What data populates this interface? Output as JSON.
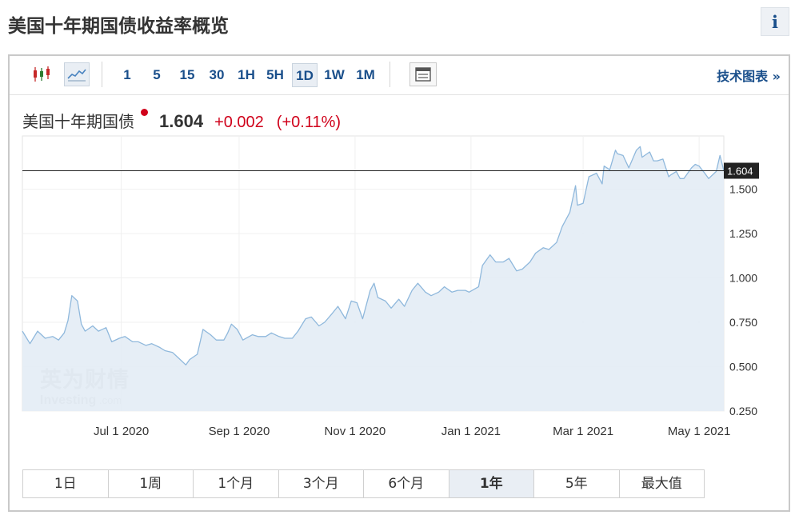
{
  "page": {
    "title": "美国十年期国债收益率概览",
    "info_label": "i"
  },
  "toolbar": {
    "intervals": [
      {
        "label": "1",
        "active": false
      },
      {
        "label": "5",
        "active": false
      },
      {
        "label": "15",
        "active": false
      },
      {
        "label": "30",
        "active": false
      },
      {
        "label": "1H",
        "active": false
      },
      {
        "label": "5H",
        "active": false
      },
      {
        "label": "1D",
        "active": true
      },
      {
        "label": "1W",
        "active": false
      },
      {
        "label": "1M",
        "active": false
      }
    ],
    "tech_chart_label": "技术图表 »"
  },
  "quote": {
    "name": "美国十年期国债",
    "price": "1.604",
    "change": "+0.002",
    "change_pct": "(+0.11%)",
    "up_color": "#d0021b"
  },
  "watermark": {
    "cn": "英为财情",
    "en": "Investing",
    "suffix": ".com"
  },
  "ranges": [
    {
      "label": "1日",
      "active": false
    },
    {
      "label": "1周",
      "active": false
    },
    {
      "label": "1个月",
      "active": false
    },
    {
      "label": "3个月",
      "active": false
    },
    {
      "label": "6个月",
      "active": false
    },
    {
      "label": "1年",
      "active": true
    },
    {
      "label": "5年",
      "active": false
    },
    {
      "label": "最大值",
      "active": false
    }
  ],
  "chart_data": {
    "type": "area",
    "x_axis": "date",
    "xlim": [
      "2020-05-10",
      "2021-05-14"
    ],
    "ylim": [
      0.25,
      1.8
    ],
    "y_axis_side": "right",
    "y_ticks": [
      0.25,
      0.5,
      0.75,
      1.0,
      1.25,
      1.5
    ],
    "y_tick_labels": [
      "0.250",
      "0.500",
      "0.750",
      "1.000",
      "1.250",
      "1.500"
    ],
    "x_ticks": [
      "2020-07-01",
      "2020-09-01",
      "2020-11-01",
      "2021-01-01",
      "2021-03-01",
      "2021-05-01"
    ],
    "x_tick_labels": [
      "Jul 1 2020",
      "Sep 1 2020",
      "Nov 1 2020",
      "Jan 1 2021",
      "Mar 1 2021",
      "May 1 2021"
    ],
    "current_value": 1.604,
    "current_label": "1.604",
    "line_color": "#8fb8dc",
    "fill_color": "#e3ecf5",
    "series": [
      {
        "points": [
          [
            "2020-05-10",
            0.7
          ],
          [
            "2020-05-14",
            0.63
          ],
          [
            "2020-05-18",
            0.7
          ],
          [
            "2020-05-22",
            0.66
          ],
          [
            "2020-05-26",
            0.67
          ],
          [
            "2020-05-29",
            0.65
          ],
          [
            "2020-06-01",
            0.69
          ],
          [
            "2020-06-03",
            0.76
          ],
          [
            "2020-06-05",
            0.9
          ],
          [
            "2020-06-08",
            0.87
          ],
          [
            "2020-06-10",
            0.74
          ],
          [
            "2020-06-12",
            0.7
          ],
          [
            "2020-06-16",
            0.73
          ],
          [
            "2020-06-19",
            0.7
          ],
          [
            "2020-06-23",
            0.72
          ],
          [
            "2020-06-26",
            0.64
          ],
          [
            "2020-06-30",
            0.66
          ],
          [
            "2020-07-03",
            0.67
          ],
          [
            "2020-07-07",
            0.64
          ],
          [
            "2020-07-10",
            0.64
          ],
          [
            "2020-07-14",
            0.62
          ],
          [
            "2020-07-17",
            0.63
          ],
          [
            "2020-07-21",
            0.61
          ],
          [
            "2020-07-24",
            0.59
          ],
          [
            "2020-07-28",
            0.58
          ],
          [
            "2020-07-31",
            0.55
          ],
          [
            "2020-08-04",
            0.51
          ],
          [
            "2020-08-06",
            0.54
          ],
          [
            "2020-08-10",
            0.57
          ],
          [
            "2020-08-13",
            0.71
          ],
          [
            "2020-08-17",
            0.68
          ],
          [
            "2020-08-20",
            0.65
          ],
          [
            "2020-08-24",
            0.65
          ],
          [
            "2020-08-26",
            0.69
          ],
          [
            "2020-08-28",
            0.74
          ],
          [
            "2020-08-31",
            0.71
          ],
          [
            "2020-09-03",
            0.65
          ],
          [
            "2020-09-08",
            0.68
          ],
          [
            "2020-09-11",
            0.67
          ],
          [
            "2020-09-15",
            0.67
          ],
          [
            "2020-09-18",
            0.69
          ],
          [
            "2020-09-22",
            0.67
          ],
          [
            "2020-09-25",
            0.66
          ],
          [
            "2020-09-29",
            0.66
          ],
          [
            "2020-10-02",
            0.7
          ],
          [
            "2020-10-06",
            0.77
          ],
          [
            "2020-10-09",
            0.78
          ],
          [
            "2020-10-13",
            0.73
          ],
          [
            "2020-10-16",
            0.75
          ],
          [
            "2020-10-20",
            0.8
          ],
          [
            "2020-10-23",
            0.84
          ],
          [
            "2020-10-27",
            0.77
          ],
          [
            "2020-10-30",
            0.87
          ],
          [
            "2020-11-02",
            0.86
          ],
          [
            "2020-11-05",
            0.77
          ],
          [
            "2020-11-09",
            0.93
          ],
          [
            "2020-11-11",
            0.97
          ],
          [
            "2020-11-13",
            0.89
          ],
          [
            "2020-11-17",
            0.87
          ],
          [
            "2020-11-20",
            0.83
          ],
          [
            "2020-11-24",
            0.88
          ],
          [
            "2020-11-27",
            0.84
          ],
          [
            "2020-12-01",
            0.93
          ],
          [
            "2020-12-04",
            0.97
          ],
          [
            "2020-12-08",
            0.92
          ],
          [
            "2020-12-11",
            0.9
          ],
          [
            "2020-12-15",
            0.92
          ],
          [
            "2020-12-18",
            0.95
          ],
          [
            "2020-12-22",
            0.92
          ],
          [
            "2020-12-25",
            0.93
          ],
          [
            "2020-12-29",
            0.93
          ],
          [
            "2020-12-31",
            0.92
          ],
          [
            "2021-01-05",
            0.95
          ],
          [
            "2021-01-07",
            1.07
          ],
          [
            "2021-01-11",
            1.13
          ],
          [
            "2021-01-14",
            1.09
          ],
          [
            "2021-01-18",
            1.09
          ],
          [
            "2021-01-21",
            1.11
          ],
          [
            "2021-01-25",
            1.04
          ],
          [
            "2021-01-28",
            1.05
          ],
          [
            "2021-02-01",
            1.09
          ],
          [
            "2021-02-04",
            1.14
          ],
          [
            "2021-02-08",
            1.17
          ],
          [
            "2021-02-11",
            1.16
          ],
          [
            "2021-02-15",
            1.2
          ],
          [
            "2021-02-18",
            1.29
          ],
          [
            "2021-02-22",
            1.37
          ],
          [
            "2021-02-25",
            1.52
          ],
          [
            "2021-02-26",
            1.41
          ],
          [
            "2021-03-01",
            1.42
          ],
          [
            "2021-03-04",
            1.57
          ],
          [
            "2021-03-08",
            1.59
          ],
          [
            "2021-03-11",
            1.53
          ],
          [
            "2021-03-12",
            1.63
          ],
          [
            "2021-03-15",
            1.61
          ],
          [
            "2021-03-18",
            1.72
          ],
          [
            "2021-03-19",
            1.7
          ],
          [
            "2021-03-22",
            1.69
          ],
          [
            "2021-03-25",
            1.62
          ],
          [
            "2021-03-29",
            1.72
          ],
          [
            "2021-03-31",
            1.74
          ],
          [
            "2021-04-01",
            1.68
          ],
          [
            "2021-04-05",
            1.71
          ],
          [
            "2021-04-07",
            1.66
          ],
          [
            "2021-04-09",
            1.66
          ],
          [
            "2021-04-12",
            1.67
          ],
          [
            "2021-04-15",
            1.57
          ],
          [
            "2021-04-16",
            1.58
          ],
          [
            "2021-04-19",
            1.6
          ],
          [
            "2021-04-21",
            1.56
          ],
          [
            "2021-04-23",
            1.56
          ],
          [
            "2021-04-27",
            1.62
          ],
          [
            "2021-04-29",
            1.64
          ],
          [
            "2021-05-01",
            1.63
          ],
          [
            "2021-05-04",
            1.59
          ],
          [
            "2021-05-06",
            1.56
          ],
          [
            "2021-05-10",
            1.6
          ],
          [
            "2021-05-12",
            1.69
          ],
          [
            "2021-05-14",
            1.604
          ]
        ]
      }
    ]
  }
}
